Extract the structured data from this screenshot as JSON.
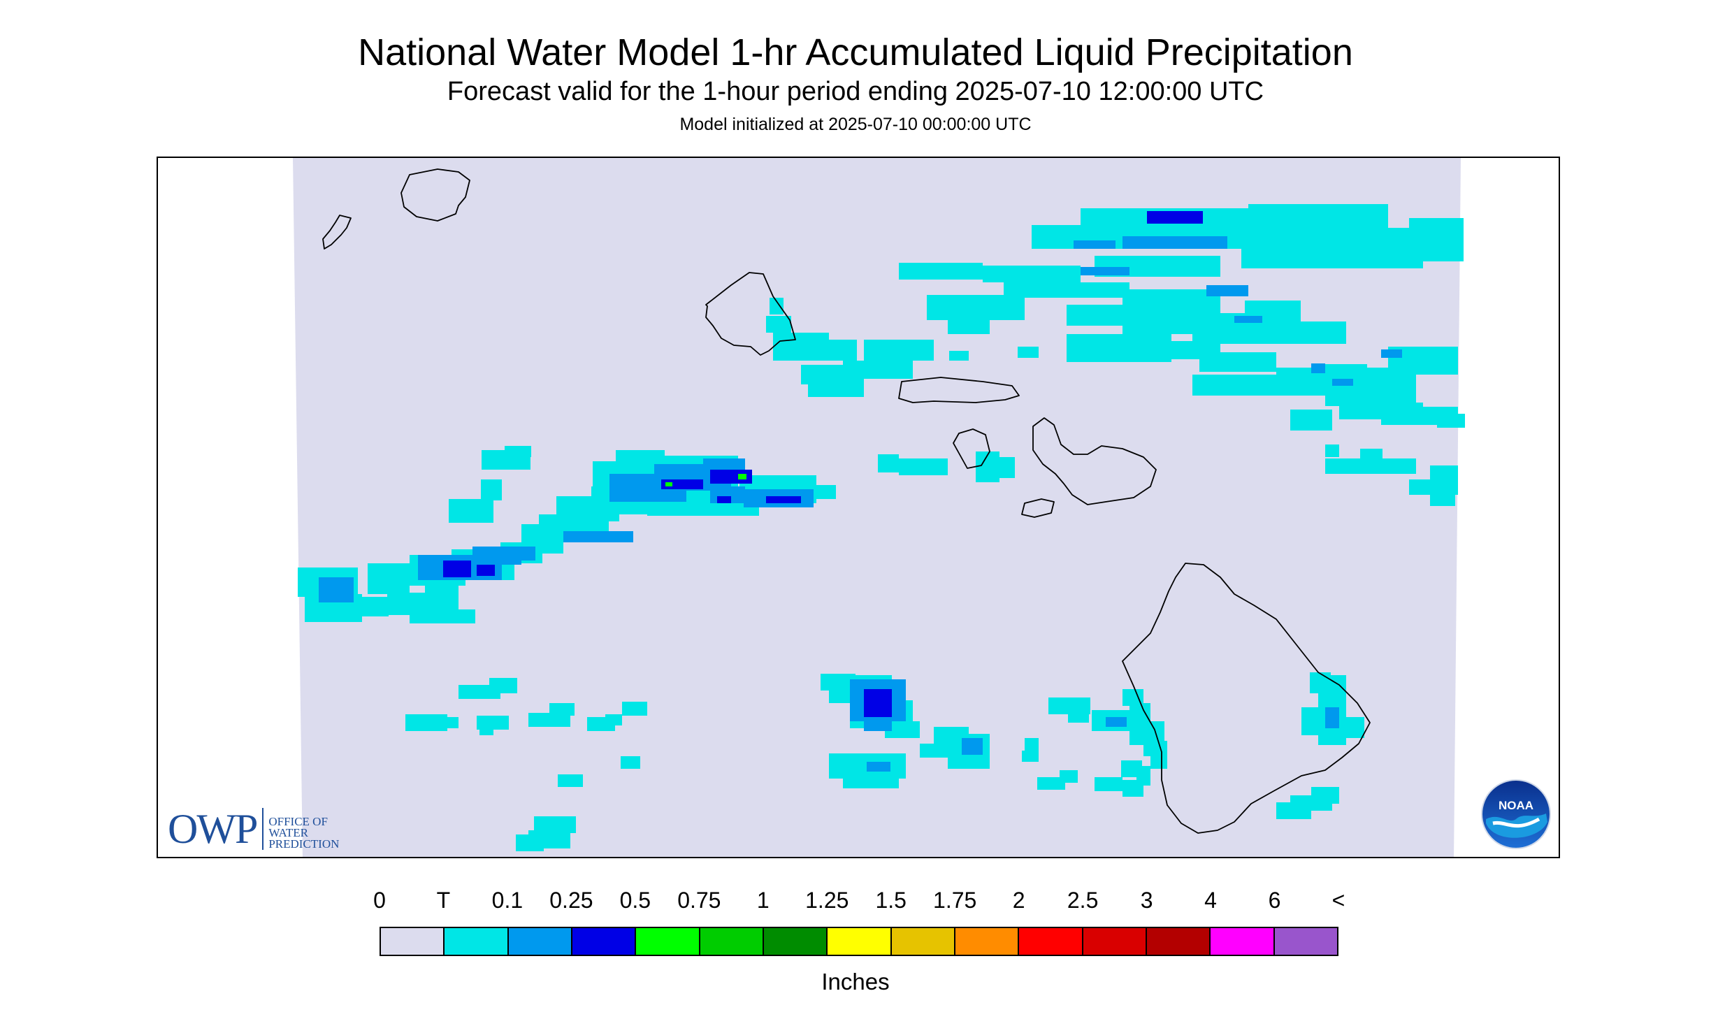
{
  "header": {
    "title": "National Water Model 1-hr Accumulated Liquid Precipitation",
    "subtitle": "Forecast valid for the 1-hour period ending 2025-07-10 12:00:00 UTC",
    "init": "Model initialized at 2025-07-10 00:00:00 UTC"
  },
  "map": {
    "background_color": "#dcdcee",
    "coastline_color": "#000000",
    "islands": [
      "Niihau",
      "Kauai",
      "Oahu",
      "Molokai",
      "Lanai",
      "Maui",
      "Kahoolawe",
      "Hawaii"
    ]
  },
  "logos": {
    "owp_mark": "OWP",
    "owp_line1": "Office of",
    "owp_line2": "Water",
    "owp_line3": "Prediction",
    "noaa_text": "NOAA"
  },
  "legend": {
    "labels": [
      "0",
      "T",
      "0.1",
      "0.25",
      "0.5",
      "0.75",
      "1",
      "1.25",
      "1.5",
      "1.75",
      "2",
      "2.5",
      "3",
      "4",
      "6",
      "<"
    ],
    "colors": [
      "#dcdcee",
      "#00e6e6",
      "#0099ee",
      "#0000e6",
      "#00ff00",
      "#00cc00",
      "#008c00",
      "#ffff00",
      "#e6c300",
      "#ff8c00",
      "#ff0000",
      "#d90000",
      "#b30000",
      "#ff00ff",
      "#9955cc"
    ],
    "units": "Inches"
  }
}
